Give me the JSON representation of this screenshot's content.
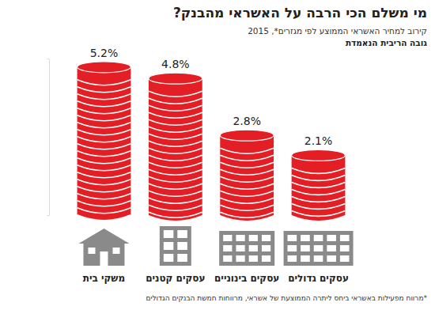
{
  "chart_data": {
    "type": "bar",
    "title": "מי משלם הכי הרבה על האשראי מהבנק?",
    "subtitle": "קירוב למחיר האשראי הממוצע לפי מגזרים*, 2015",
    "y_label": "גובה הריבית הנאמדת",
    "footnote": "*מרווח מפעילות באשראי ביחס ליתרה הממוצעת של אשראי, מרווחות חמשת הבנקים הגדולים",
    "categories": [
      "משקי בית",
      "עסקים קטנים",
      "עסקים בינוניים",
      "עסקים גדולים"
    ],
    "values": [
      5.2,
      4.8,
      2.8,
      2.1
    ],
    "value_labels": [
      "5.2%",
      "4.8%",
      "2.8%",
      "2.1%"
    ],
    "data_labels": true,
    "color": "#e31e24",
    "ylim": [
      0,
      5.5
    ],
    "yticks": [
      0
    ],
    "tick_labels": false
  }
}
